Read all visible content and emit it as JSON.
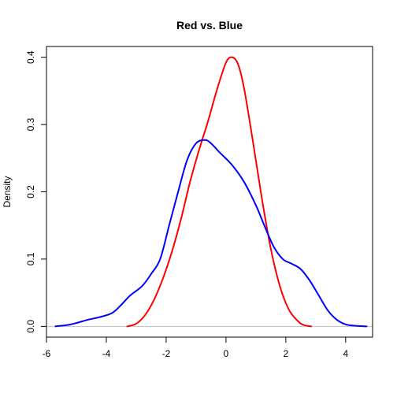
{
  "chart_data": {
    "type": "line",
    "title": "Red vs. Blue",
    "xlabel": "",
    "ylabel": "Density",
    "xlim": [
      -6.0,
      4.9
    ],
    "ylim": [
      -0.016,
      0.416
    ],
    "x_ticks": [
      -6,
      -4,
      -2,
      0,
      2,
      4
    ],
    "x_tick_labels": [
      "-6",
      "-4",
      "-2",
      "0",
      "2",
      "4"
    ],
    "y_ticks": [
      0.0,
      0.1,
      0.2,
      0.3,
      0.4
    ],
    "y_tick_labels": [
      "0.0",
      "0.1",
      "0.2",
      "0.3",
      "0.4"
    ],
    "baseline": {
      "y": 0,
      "color": "#bebebe"
    },
    "grid": false,
    "legend": "none",
    "series": [
      {
        "color": "#ff0000",
        "x": [
          -3.3,
          -3.0,
          -2.7,
          -2.4,
          -2.1,
          -1.8,
          -1.5,
          -1.2,
          -0.9,
          -0.6,
          -0.3,
          0.0,
          0.2,
          0.4,
          0.6,
          0.9,
          1.2,
          1.5,
          1.8,
          2.1,
          2.4,
          2.6,
          2.85
        ],
        "y": [
          0.0,
          0.004,
          0.017,
          0.04,
          0.072,
          0.112,
          0.16,
          0.215,
          0.262,
          0.305,
          0.352,
          0.392,
          0.4,
          0.39,
          0.355,
          0.275,
          0.19,
          0.115,
          0.06,
          0.025,
          0.008,
          0.002,
          0.0
        ]
      },
      {
        "color": "#0000ff",
        "x": [
          -5.7,
          -5.3,
          -5.0,
          -4.6,
          -4.2,
          -3.8,
          -3.5,
          -3.2,
          -2.8,
          -2.5,
          -2.2,
          -1.9,
          -1.6,
          -1.3,
          -1.0,
          -0.7,
          -0.5,
          -0.2,
          0.2,
          0.6,
          1.0,
          1.3,
          1.6,
          1.9,
          2.2,
          2.5,
          2.8,
          3.1,
          3.4,
          3.7,
          4.0,
          4.3,
          4.7
        ],
        "y": [
          0.0,
          0.002,
          0.005,
          0.01,
          0.014,
          0.02,
          0.032,
          0.046,
          0.06,
          0.078,
          0.1,
          0.15,
          0.2,
          0.247,
          0.272,
          0.277,
          0.272,
          0.258,
          0.24,
          0.215,
          0.18,
          0.148,
          0.118,
          0.1,
          0.093,
          0.085,
          0.068,
          0.046,
          0.024,
          0.01,
          0.003,
          0.001,
          0.0
        ]
      }
    ]
  }
}
